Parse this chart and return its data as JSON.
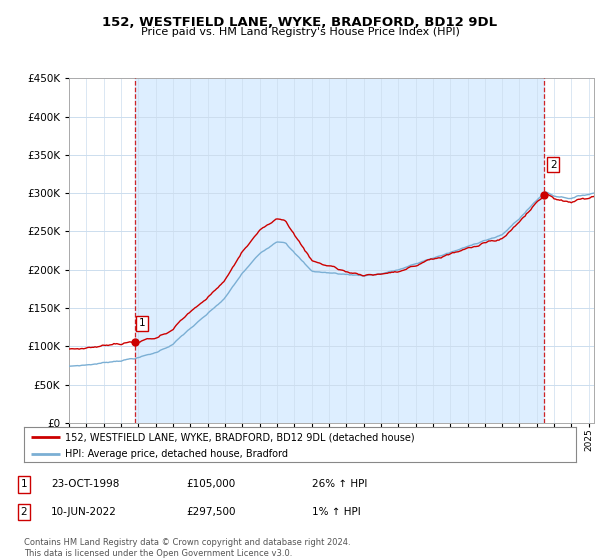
{
  "title": "152, WESTFIELD LANE, WYKE, BRADFORD, BD12 9DL",
  "subtitle": "Price paid vs. HM Land Registry's House Price Index (HPI)",
  "legend_line1": "152, WESTFIELD LANE, WYKE, BRADFORD, BD12 9DL (detached house)",
  "legend_line2": "HPI: Average price, detached house, Bradford",
  "footnote": "Contains HM Land Registry data © Crown copyright and database right 2024.\nThis data is licensed under the Open Government Licence v3.0.",
  "sale1_date": "23-OCT-1998",
  "sale1_price": 105000,
  "sale1_hpi_text": "26% ↑ HPI",
  "sale2_date": "10-JUN-2022",
  "sale2_price": 297500,
  "sale2_hpi_text": "1% ↑ HPI",
  "ylim": [
    0,
    450000
  ],
  "yticks": [
    0,
    50000,
    100000,
    150000,
    200000,
    250000,
    300000,
    350000,
    400000,
    450000
  ],
  "sale1_x": 1998.81,
  "sale2_x": 2022.44,
  "hpi_color": "#7bafd4",
  "property_color": "#cc0000",
  "vline_color": "#cc0000",
  "shading_color": "#ddeeff",
  "background_color": "#ffffff",
  "grid_color": "#ccddee",
  "xlim_left": 1995.0,
  "xlim_right": 2025.3
}
